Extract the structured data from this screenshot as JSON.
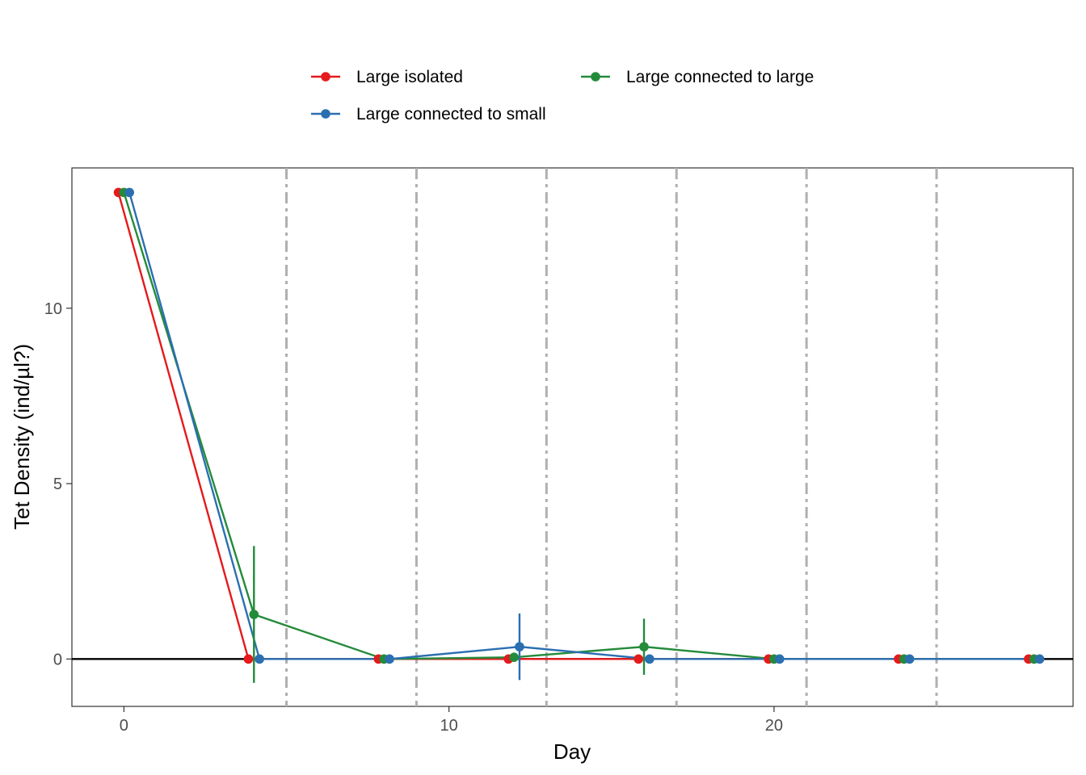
{
  "chart_data": {
    "type": "line",
    "xlabel": "Day",
    "ylabel": "Tet Density (ind/µl?)",
    "xlim": [
      -1.6,
      29.2
    ],
    "ylim": [
      -1.35,
      14.0
    ],
    "x_ticks": [
      0,
      10,
      20
    ],
    "y_ticks": [
      0,
      5,
      10
    ],
    "x_tick_labels": [
      "0",
      "10",
      "20"
    ],
    "y_tick_labels": [
      "0",
      "5",
      "10"
    ],
    "vlines": [
      5,
      9,
      13,
      17,
      21,
      25
    ],
    "hline": 0,
    "grid": false,
    "legend_position": "top",
    "colors": {
      "Large isolated": "#E41A1C",
      "Large connected to large": "#238B3A",
      "Large connected to small": "#2B6FB0",
      "vline": "#B0B0B0",
      "hline": "#000000",
      "panel_border": "#333333"
    },
    "series": [
      {
        "name": "Large isolated",
        "x": [
          0,
          4,
          8,
          12,
          16,
          20,
          24,
          28
        ],
        "y": [
          13.3,
          0,
          0,
          0,
          0,
          0,
          0,
          0
        ],
        "err_low": [
          null,
          null,
          null,
          null,
          null,
          null,
          null,
          null
        ],
        "err_high": [
          null,
          null,
          null,
          null,
          null,
          null,
          null,
          null
        ]
      },
      {
        "name": "Large connected to large",
        "x": [
          0,
          4,
          8,
          12,
          16,
          20,
          24,
          28
        ],
        "y": [
          13.3,
          1.27,
          0,
          0.05,
          0.35,
          0,
          0,
          0
        ],
        "err_low": [
          null,
          -0.68,
          null,
          null,
          -0.45,
          null,
          null,
          null
        ],
        "err_high": [
          null,
          3.22,
          null,
          null,
          1.15,
          null,
          null,
          null
        ]
      },
      {
        "name": "Large connected to small",
        "x": [
          0,
          4,
          8,
          12,
          16,
          20,
          24,
          28
        ],
        "y": [
          13.3,
          0,
          0,
          0.35,
          0,
          0,
          0,
          0
        ],
        "err_low": [
          null,
          null,
          null,
          -0.6,
          null,
          null,
          null,
          null
        ],
        "err_high": [
          null,
          null,
          null,
          1.3,
          null,
          null,
          null,
          null
        ]
      }
    ]
  }
}
